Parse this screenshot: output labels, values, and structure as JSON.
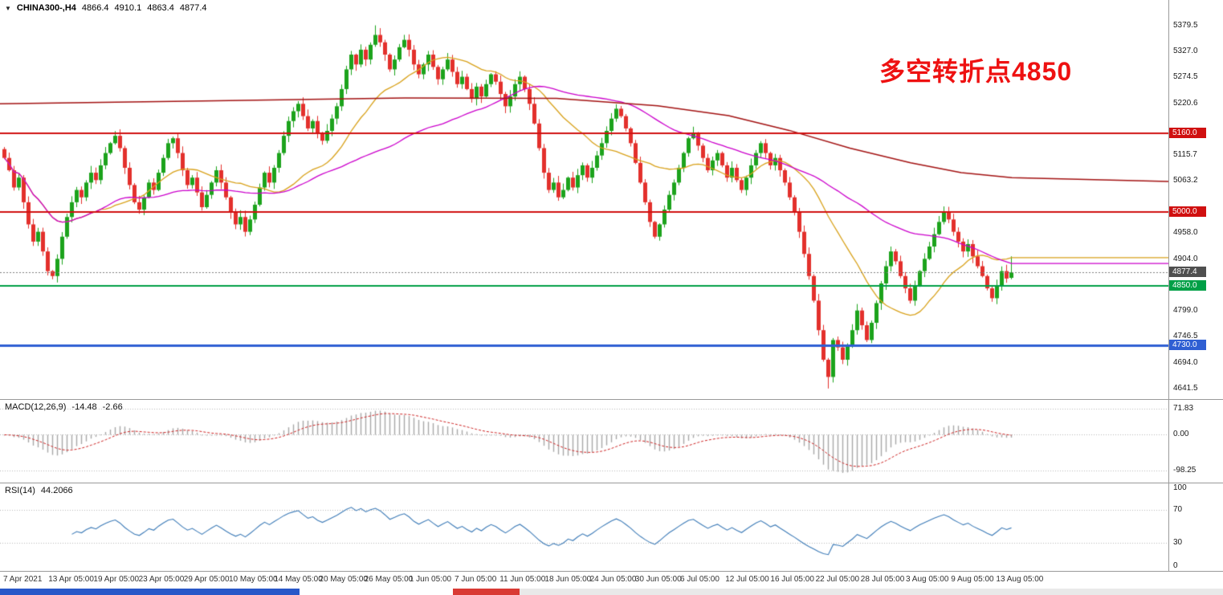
{
  "header": {
    "symbol": "CHINA300-,H4",
    "open": "4866.4",
    "high": "4910.1",
    "low": "4863.4",
    "close": "4877.4"
  },
  "annotation": {
    "text": "多空转折点4850",
    "color": "#ee1111"
  },
  "indicators": {
    "macd": {
      "title": "MACD(12,26,9)",
      "main_value": "-14.48",
      "signal_value": "-2.66",
      "ticks": [
        "71.83",
        "0.00",
        "-98.25"
      ]
    },
    "rsi": {
      "title": "RSI(14)",
      "value": "44.2066",
      "ticks": [
        "100",
        "70",
        "30",
        "0"
      ]
    }
  },
  "colors": {
    "up": "#1ca31c",
    "up_edge": "#0e7a0e",
    "down": "#e3302c",
    "down_edge": "#b01612",
    "background": "#ffffff",
    "separator": "#9a9a9a",
    "macd_histogram": "#a8a8a8",
    "macd_signal": "#cf2424",
    "rsi_line": "#3e7cb8",
    "level_dotted": "#b8b8b8",
    "current_line": "#808080",
    "axis_text": "#1a1a1a"
  },
  "chart_data": {
    "type": "candlestick",
    "symbol": "CHINA300-",
    "timeframe": "H4",
    "title": "CHINA300- H4 with MACD(12,26,9) and RSI(14)",
    "price_range": {
      "min": 4620,
      "max": 5431
    },
    "closes": [
      5110,
      5085,
      5050,
      5070,
      5020,
      4975,
      4940,
      4960,
      4920,
      4880,
      4870,
      4905,
      4950,
      4990,
      5020,
      5045,
      5030,
      5060,
      5080,
      5065,
      5095,
      5120,
      5140,
      5155,
      5130,
      5090,
      5055,
      5020,
      5005,
      5030,
      5060,
      5045,
      5080,
      5110,
      5140,
      5150,
      5120,
      5085,
      5055,
      5070,
      5040,
      5010,
      5035,
      5060,
      5085,
      5060,
      5030,
      5000,
      4975,
      4990,
      4960,
      4985,
      5015,
      5050,
      5080,
      5060,
      5090,
      5120,
      5155,
      5185,
      5205,
      5220,
      5195,
      5170,
      5185,
      5160,
      5145,
      5165,
      5190,
      5215,
      5250,
      5290,
      5320,
      5300,
      5330,
      5310,
      5340,
      5360,
      5345,
      5320,
      5290,
      5310,
      5335,
      5350,
      5330,
      5300,
      5280,
      5300,
      5320,
      5295,
      5270,
      5290,
      5310,
      5285,
      5260,
      5275,
      5250,
      5230,
      5255,
      5235,
      5260,
      5280,
      5265,
      5240,
      5215,
      5235,
      5260,
      5275,
      5250,
      5220,
      5180,
      5130,
      5080,
      5045,
      5060,
      5030,
      5045,
      5070,
      5050,
      5075,
      5095,
      5070,
      5090,
      5115,
      5140,
      5165,
      5190,
      5210,
      5195,
      5170,
      5140,
      5100,
      5060,
      5020,
      4980,
      4950,
      4975,
      5005,
      5035,
      5060,
      5090,
      5120,
      5150,
      5160,
      5135,
      5110,
      5085,
      5105,
      5120,
      5095,
      5070,
      5090,
      5065,
      5045,
      5070,
      5095,
      5120,
      5140,
      5120,
      5095,
      5110,
      5085,
      5060,
      5030,
      5000,
      4960,
      4915,
      4870,
      4820,
      4760,
      4700,
      4665,
      4740,
      4725,
      4700,
      4730,
      4760,
      4800,
      4770,
      4740,
      4775,
      4815,
      4855,
      4890,
      4920,
      4900,
      4870,
      4845,
      4820,
      4850,
      4880,
      4905,
      4930,
      4955,
      4980,
      5000,
      4985,
      4960,
      4940,
      4920,
      4935,
      4910,
      4890,
      4870,
      4845,
      4825,
      4850,
      4880,
      4865,
      4877.4
    ],
    "last_ohlc": {
      "open": 4866.4,
      "high": 4910.1,
      "low": 4863.4,
      "close": 4877.4
    },
    "extremes": {
      "high_index": 77,
      "high": 5379.5,
      "low_index": 171,
      "low": 4641.5
    },
    "y_ticks": [
      5379.5,
      5327.0,
      5274.5,
      5220.6,
      5115.7,
      5063.2,
      4958.0,
      4904.0,
      4799.0,
      4746.5,
      4694.0,
      4641.5
    ],
    "h_lines": [
      {
        "label": "5160.0",
        "value": 5160.0,
        "color": "#d01010",
        "thickness": 2
      },
      {
        "label": "5000.0",
        "value": 5000.0,
        "color": "#d01010",
        "thickness": 2
      },
      {
        "label": "4850.0",
        "value": 4850.0,
        "color": "#009f46",
        "thickness": 2
      },
      {
        "label": "4730.0",
        "value": 4730.0,
        "color": "#2f5fd3",
        "thickness": 3
      }
    ],
    "current_price": {
      "label": "4877.4",
      "value": 4877.4,
      "tag_color": "#4f4f4f"
    },
    "moving_averages": {
      "fast": {
        "period": 21,
        "color": "#d9a21b"
      },
      "slow": {
        "period": 55,
        "color": "#cc00cc"
      },
      "long": {
        "color": "#a31212",
        "waypoints": [
          [
            0,
            5220
          ],
          [
            0.2,
            5226
          ],
          [
            0.4,
            5232
          ],
          [
            0.55,
            5231
          ],
          [
            0.65,
            5216
          ],
          [
            0.72,
            5196
          ],
          [
            0.78,
            5166
          ],
          [
            0.84,
            5130
          ],
          [
            0.9,
            5100
          ],
          [
            0.95,
            5080
          ],
          [
            1.0,
            5070
          ],
          [
            1.155,
            5062
          ]
        ]
      }
    },
    "macd": {
      "fast": 12,
      "slow": 26,
      "signal": 9,
      "range": {
        "min": -130,
        "max": 95
      },
      "tick_values": [
        71.83,
        0,
        -98.25
      ]
    },
    "rsi": {
      "period": 14,
      "levels": [
        70,
        30
      ],
      "tick_values": [
        100,
        70,
        30,
        0
      ]
    },
    "x_labels": [
      "7 Apr 2021",
      "13 Apr 05:00",
      "19 Apr 05:00",
      "23 Apr 05:00",
      "29 Apr 05:00",
      "10 May 05:00",
      "14 May 05:00",
      "20 May 05:00",
      "26 May 05:00",
      "1 Jun 05:00",
      "7 Jun 05:00",
      "11 Jun 05:00",
      "18 Jun 05:00",
      "24 Jun 05:00",
      "30 Jun 05:00",
      "6 Jul 05:00",
      "12 Jul 05:00",
      "16 Jul 05:00",
      "22 Jul 05:00",
      "28 Jul 05:00",
      "3 Aug 05:00",
      "9 Aug 05:00",
      "13 Aug 05:00"
    ]
  },
  "taskbar": {
    "segments": [
      {
        "color": "#2857c8",
        "w": 0.245
      },
      {
        "color": "#ffffff",
        "w": 0.125
      },
      {
        "color": "#d93a34",
        "w": 0.055
      },
      {
        "color": "#e9e9e9",
        "w": 0.575
      }
    ]
  }
}
